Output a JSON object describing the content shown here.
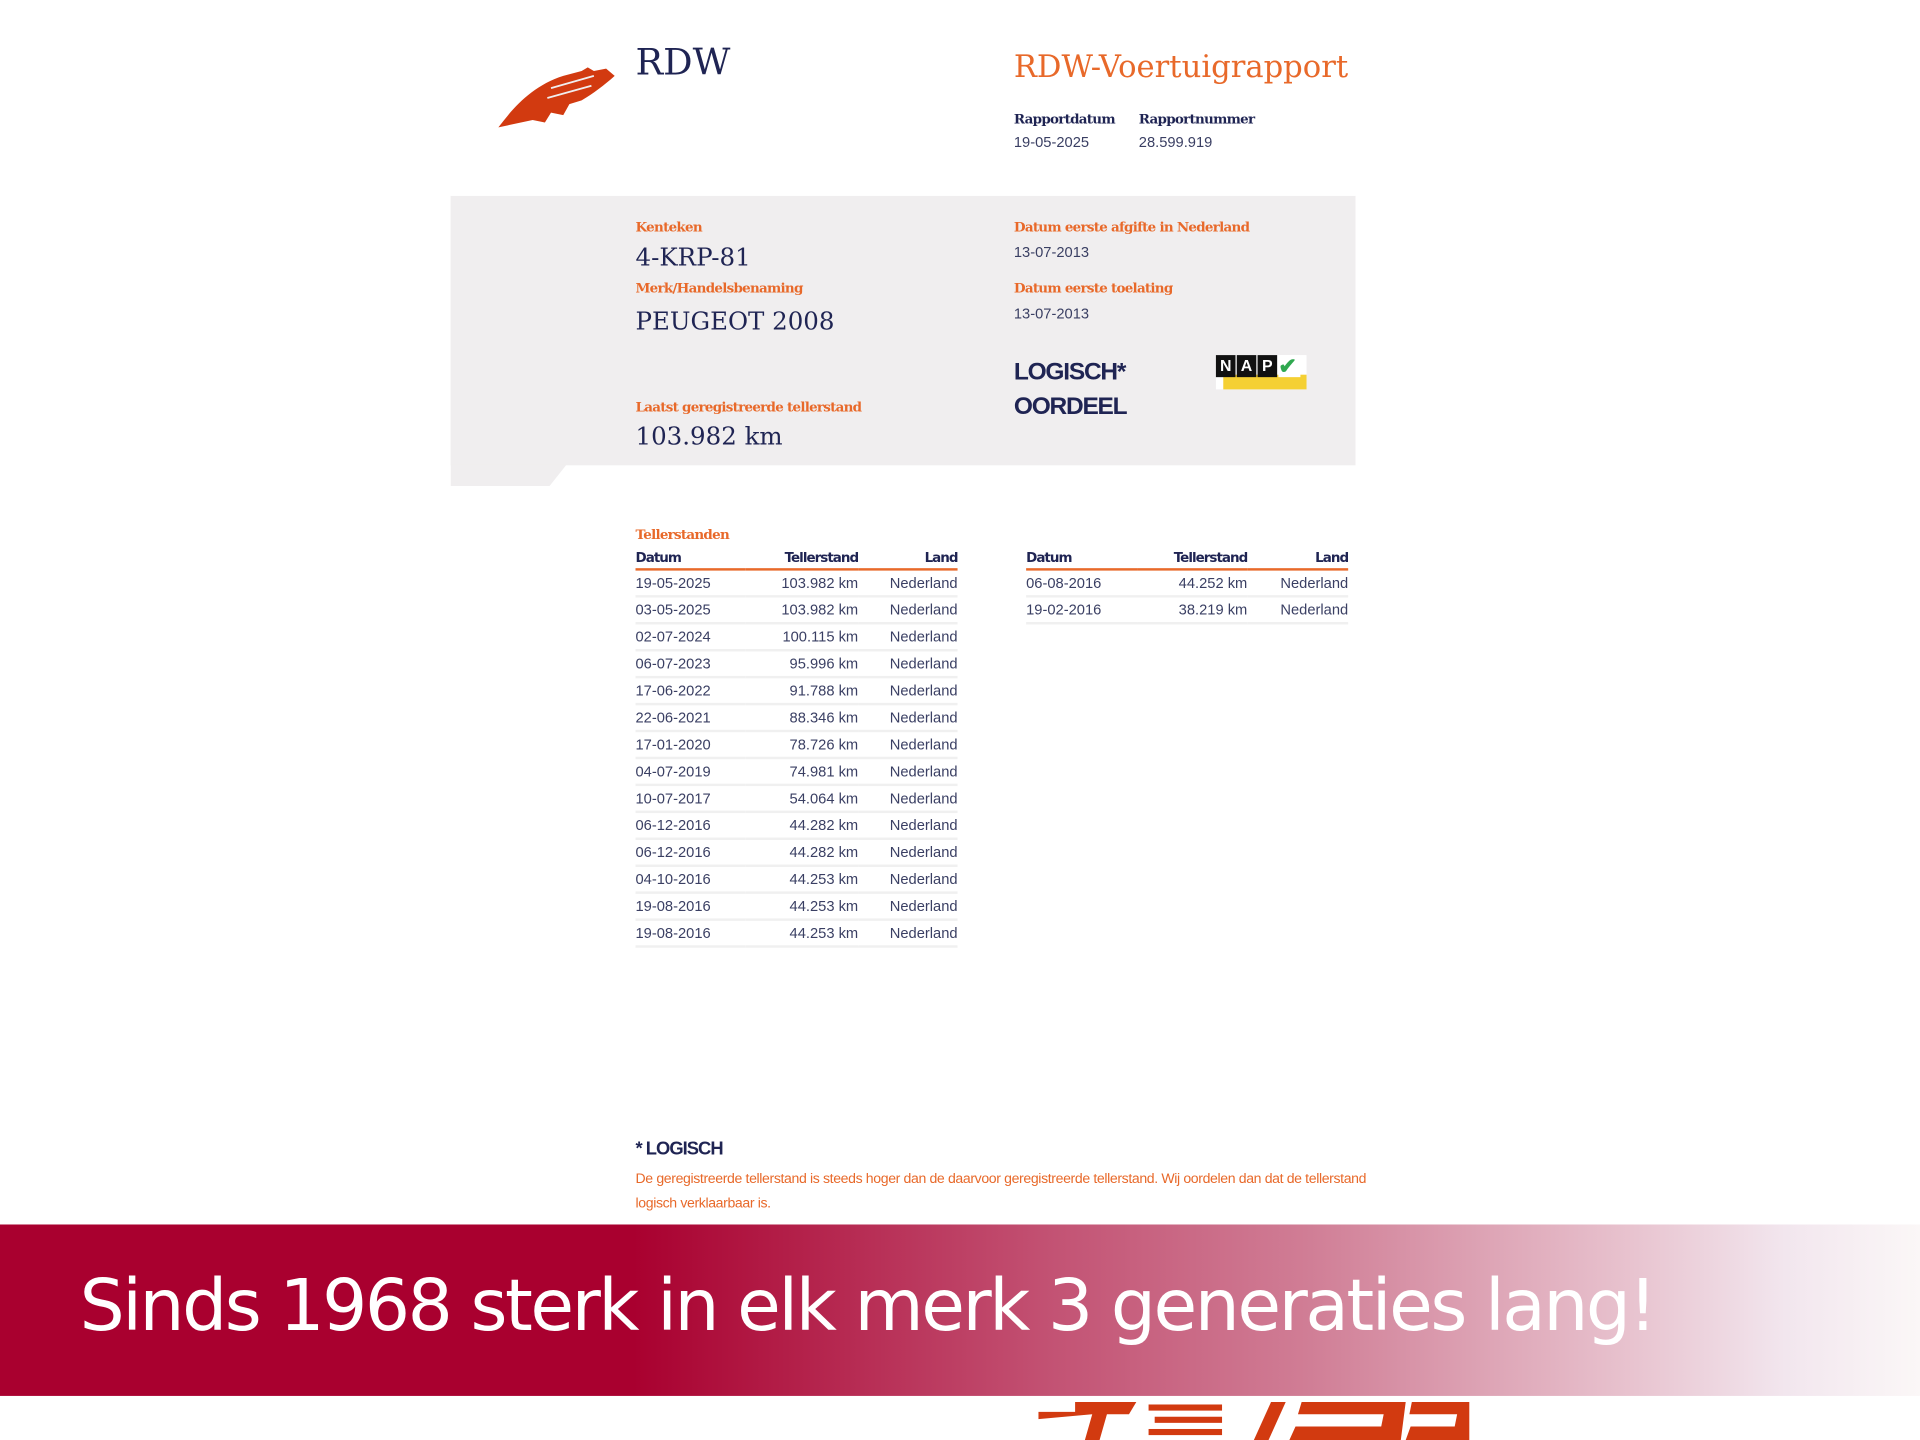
{
  "header": {
    "brand": "RDW",
    "report_title": "RDW-Voertuigrapport",
    "rapportdatum_label": "Rapportdatum",
    "rapportdatum": "19-05-2025",
    "rapportnummer_label": "Rapportnummer",
    "rapportnummer": "28.599.919",
    "logo_icon": "rdw-feather-logo"
  },
  "vehicle": {
    "kenteken_label": "Kenteken",
    "kenteken": "4-KRP-81",
    "merk_label": "Merk/Handelsbenaming",
    "merk": "PEUGEOT 2008",
    "teller_label": "Laatst geregistreerde tellerstand",
    "teller": "103.982 km",
    "afgifte_label": "Datum eerste afgifte in Nederland",
    "afgifte": "13-07-2013",
    "toelating_label": "Datum eerste toelating",
    "toelating": "13-07-2013",
    "oordeel": "LOGISCH*",
    "oordeel_label": "OORDEEL",
    "nap_badge": {
      "letters": [
        "N",
        "A",
        "P"
      ],
      "icon": "check-icon",
      "colors": {
        "check": "#2fa84f",
        "bar": "#f5d033"
      }
    }
  },
  "tellerstanden": {
    "title": "Tellerstanden",
    "columns": [
      "Datum",
      "Tellerstand",
      "Land"
    ],
    "table1": [
      [
        "19-05-2025",
        "103.982 km",
        "Nederland"
      ],
      [
        "03-05-2025",
        "103.982 km",
        "Nederland"
      ],
      [
        "02-07-2024",
        "100.115 km",
        "Nederland"
      ],
      [
        "06-07-2023",
        "95.996 km",
        "Nederland"
      ],
      [
        "17-06-2022",
        "91.788 km",
        "Nederland"
      ],
      [
        "22-06-2021",
        "88.346 km",
        "Nederland"
      ],
      [
        "17-01-2020",
        "78.726 km",
        "Nederland"
      ],
      [
        "04-07-2019",
        "74.981 km",
        "Nederland"
      ],
      [
        "10-07-2017",
        "54.064 km",
        "Nederland"
      ],
      [
        "06-12-2016",
        "44.282 km",
        "Nederland"
      ],
      [
        "06-12-2016",
        "44.282 km",
        "Nederland"
      ],
      [
        "04-10-2016",
        "44.253 km",
        "Nederland"
      ],
      [
        "19-08-2016",
        "44.253 km",
        "Nederland"
      ],
      [
        "19-08-2016",
        "44.253 km",
        "Nederland"
      ]
    ],
    "table2": [
      [
        "06-08-2016",
        "44.252 km",
        "Nederland"
      ],
      [
        "19-02-2016",
        "38.219 km",
        "Nederland"
      ]
    ]
  },
  "footnote": {
    "title": "* LOGISCH",
    "text": "De geregistreerde tellerstand is steeds hoger dan de daarvoor geregistreerde tellerstand. Wij oordelen dan dat de tellerstand logisch verklaarbaar is."
  },
  "banner": {
    "slogan": "Sinds 1968 sterk in elk merk 3 generaties lang!",
    "colors": {
      "start": "#a9002f",
      "end": "#fbf7f7"
    }
  },
  "colors": {
    "accent": "#e8692a",
    "navy": "#1f2453",
    "panel": "#f0eeef",
    "logo": "#d23a10"
  }
}
